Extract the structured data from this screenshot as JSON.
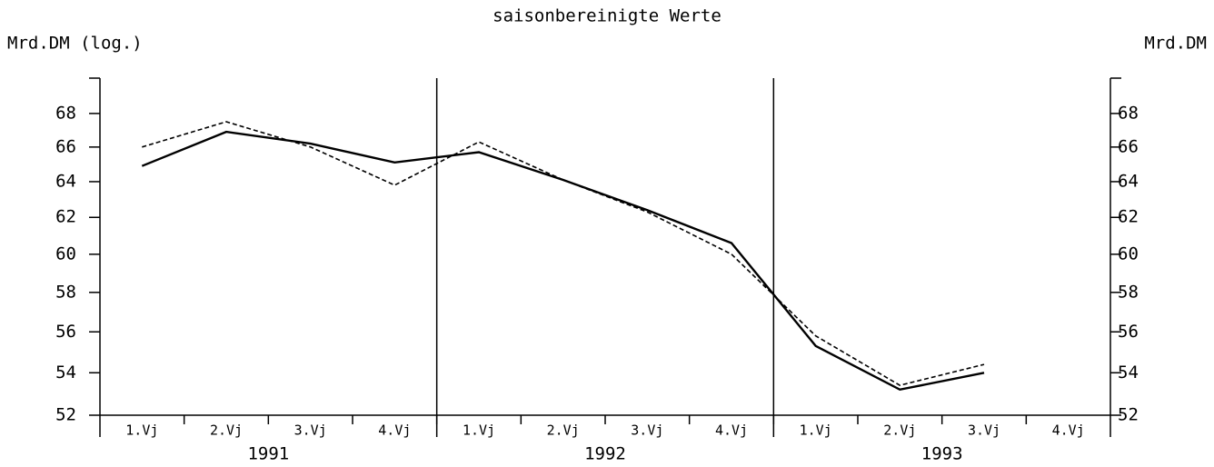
{
  "chart_data": {
    "type": "line",
    "title": "saisonbereinigte Werte",
    "y_label": "Mrd.DM (log.)",
    "y2_label": "Mrd.DM",
    "categories": [
      "1.Vj",
      "2.Vj",
      "3.Vj",
      "4.Vj",
      "1.Vj",
      "2.Vj",
      "3.Vj",
      "4.Vj",
      "1.Vj",
      "2.Vj",
      "3.Vj",
      "4.Vj"
    ],
    "groups": [
      "1991",
      "1992",
      "1993"
    ],
    "series": [
      {
        "color": "#000000",
        "style": "solid",
        "values": [
          64.9,
          66.9,
          66.2,
          65.1,
          65.7,
          64.1,
          62.4,
          60.6,
          55.3,
          53.2,
          54.0,
          null
        ]
      },
      {
        "color": "#000000",
        "style": "dashed",
        "values": [
          66.0,
          67.5,
          66.0,
          63.8,
          66.3,
          64.1,
          62.3,
          60.0,
          55.8,
          53.4,
          54.4,
          null
        ]
      }
    ],
    "log_scale": true,
    "ylim": [
      52,
      70
    ],
    "yticks": [
      52,
      54,
      56,
      58,
      60,
      62,
      64,
      66,
      68
    ],
    "y2lim": [
      52,
      70
    ],
    "y2ticks": [
      52,
      54,
      56,
      58,
      60,
      62,
      64,
      66,
      68
    ]
  }
}
